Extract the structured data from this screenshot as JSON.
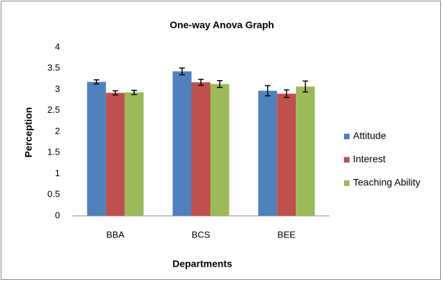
{
  "chart_data": {
    "type": "bar",
    "title": "One-way Anova Graph",
    "x_label": "Departments",
    "y_label": "Perception",
    "categories": [
      "BBA",
      "BCS",
      "BEE"
    ],
    "series": [
      {
        "name": "Attitude",
        "color": "#4f81bd",
        "values": [
          3.18,
          3.43,
          2.97
        ],
        "errors": [
          0.05,
          0.08,
          0.12
        ]
      },
      {
        "name": "Interest",
        "color": "#c0504d",
        "values": [
          2.92,
          3.17,
          2.9
        ],
        "errors": [
          0.05,
          0.07,
          0.09
        ]
      },
      {
        "name": "Teaching Ability",
        "color": "#9bbb59",
        "values": [
          2.93,
          3.13,
          3.07
        ],
        "errors": [
          0.05,
          0.08,
          0.13
        ]
      }
    ],
    "ylim": [
      0,
      4
    ],
    "yticks": [
      0,
      0.5,
      1,
      1.5,
      2,
      2.5,
      3,
      3.5,
      4
    ],
    "grid": false,
    "legend": "right"
  }
}
